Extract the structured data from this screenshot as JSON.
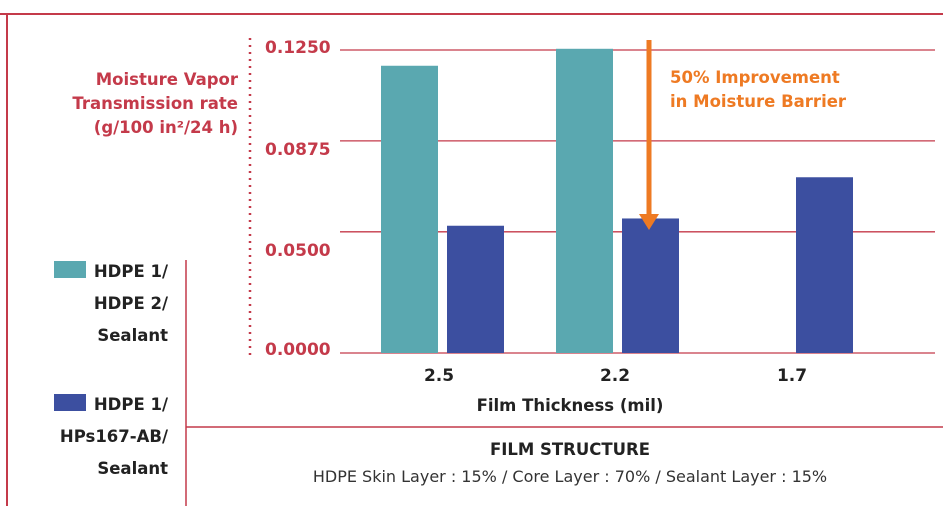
{
  "chart_data": {
    "type": "bar",
    "ylabel_lines": [
      "Moisture Vapor",
      "Transmission rate",
      "(g/100 in²/24 h)"
    ],
    "xlabel": "Film Thickness (mil)",
    "categories": [
      "2.5",
      "2.2",
      "1.7"
    ],
    "yticks": [
      "0.1250",
      "0.0875",
      "0.0500",
      "0.0000"
    ],
    "ylim": [
      0,
      0.125
    ],
    "grid": true,
    "series": [
      {
        "name": "HDPE 1/ HDPE 2/ Sealant",
        "color": "#5aa8b0",
        "values": [
          0.1185,
          0.1255,
          null
        ]
      },
      {
        "name": "HDPE 1/ HPs167-AB/ Sealant",
        "color": "#3c4fa0",
        "values": [
          0.0525,
          0.0555,
          0.0725
        ]
      }
    ],
    "annotation": {
      "lines": [
        "50% Improvement",
        "in Moisture Barrier"
      ],
      "color": "#ee7a23"
    }
  },
  "legend": {
    "items": [
      {
        "lines": [
          "HDPE 1/",
          "HDPE 2/",
          "Sealant"
        ],
        "color": "#5aa8b0"
      },
      {
        "lines": [
          "HDPE 1/",
          "HPs167-AB/",
          "Sealant"
        ],
        "color": "#3c4fa0"
      }
    ]
  },
  "film_structure": {
    "title": "FILM STRUCTURE",
    "description": "HDPE Skin Layer : 15% / Core Layer : 70% / Sealant Layer : 15%"
  },
  "colors": {
    "frame": "#c43a4a",
    "gridline": "#c43a4a",
    "accent": "#ee7a23"
  }
}
